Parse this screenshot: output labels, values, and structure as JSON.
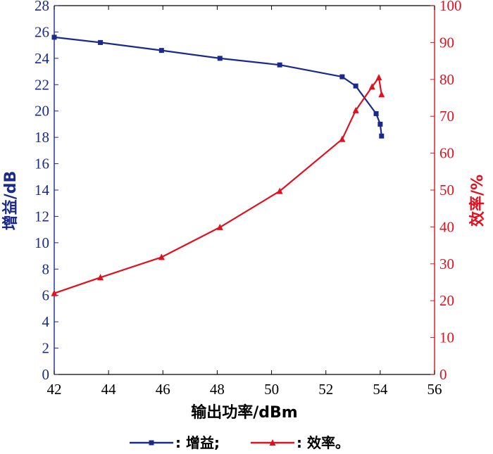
{
  "chart_data": {
    "type": "line",
    "xlabel": "输出功率/dBm",
    "ylabel_left": "增益/dB",
    "ylabel_right": "效率/%",
    "xlim": [
      42,
      56
    ],
    "ylim_left": [
      0,
      28
    ],
    "ylim_right": [
      0,
      100
    ],
    "x_ticks": [
      "42",
      "44",
      "46",
      "48",
      "50",
      "52",
      "54",
      "56"
    ],
    "y_left_ticks": [
      "0",
      "2",
      "4",
      "6",
      "8",
      "10",
      "12",
      "14",
      "16",
      "18",
      "20",
      "22",
      "24",
      "26",
      "28"
    ],
    "y_right_ticks": [
      "0",
      "10",
      "20",
      "30",
      "40",
      "50",
      "60",
      "70",
      "80",
      "90",
      "100"
    ],
    "grid": false,
    "legend_position": "bottom",
    "series": [
      {
        "name": "增益",
        "axis": "left",
        "color": "#1a2a8c",
        "marker": "square",
        "x": [
          42.0,
          43.7,
          45.95,
          48.1,
          50.3,
          52.6,
          53.1,
          53.85,
          54.0,
          54.05
        ],
        "y": [
          25.6,
          25.2,
          24.6,
          24.0,
          23.5,
          22.6,
          21.9,
          19.8,
          19.0,
          18.1
        ]
      },
      {
        "name": "效率",
        "axis": "right",
        "color": "#e0101e",
        "marker": "triangle",
        "x": [
          42.0,
          43.7,
          45.95,
          48.1,
          50.3,
          52.6,
          53.1,
          53.7,
          53.95,
          54.05
        ],
        "y": [
          22.0,
          26.3,
          31.8,
          39.9,
          49.7,
          63.8,
          71.6,
          78.0,
          80.5,
          75.9
        ]
      }
    ]
  },
  "legend": {
    "label_1": ": 增益;",
    "label_2": ": 效率。"
  }
}
